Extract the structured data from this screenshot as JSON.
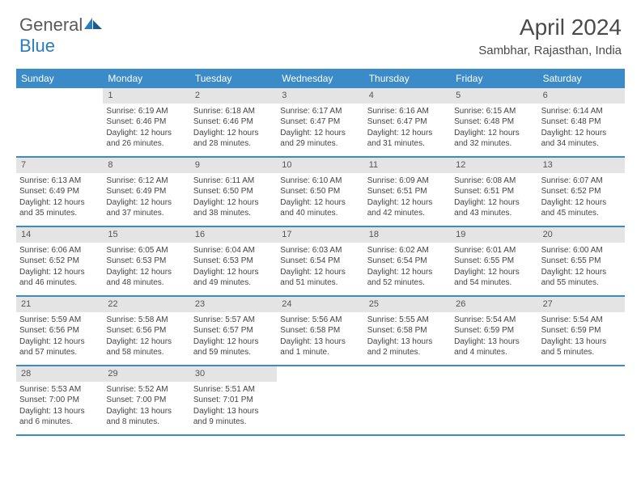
{
  "brand": {
    "word1": "General",
    "word2": "Blue"
  },
  "title": "April 2024",
  "location": "Sambhar, Rajasthan, India",
  "colors": {
    "header_bg": "#3b8bc9",
    "header_text": "#ffffff",
    "daynum_bg": "#e4e4e4",
    "border": "#3b8bc9",
    "text": "#444444",
    "logo_gray": "#5a5a5a",
    "logo_blue": "#2b7bbf"
  },
  "day_names": [
    "Sunday",
    "Monday",
    "Tuesday",
    "Wednesday",
    "Thursday",
    "Friday",
    "Saturday"
  ],
  "weeks": [
    [
      {
        "day": "",
        "sunrise": "",
        "sunset": "",
        "daylight": ""
      },
      {
        "day": "1",
        "sunrise": "Sunrise: 6:19 AM",
        "sunset": "Sunset: 6:46 PM",
        "daylight": "Daylight: 12 hours and 26 minutes."
      },
      {
        "day": "2",
        "sunrise": "Sunrise: 6:18 AM",
        "sunset": "Sunset: 6:46 PM",
        "daylight": "Daylight: 12 hours and 28 minutes."
      },
      {
        "day": "3",
        "sunrise": "Sunrise: 6:17 AM",
        "sunset": "Sunset: 6:47 PM",
        "daylight": "Daylight: 12 hours and 29 minutes."
      },
      {
        "day": "4",
        "sunrise": "Sunrise: 6:16 AM",
        "sunset": "Sunset: 6:47 PM",
        "daylight": "Daylight: 12 hours and 31 minutes."
      },
      {
        "day": "5",
        "sunrise": "Sunrise: 6:15 AM",
        "sunset": "Sunset: 6:48 PM",
        "daylight": "Daylight: 12 hours and 32 minutes."
      },
      {
        "day": "6",
        "sunrise": "Sunrise: 6:14 AM",
        "sunset": "Sunset: 6:48 PM",
        "daylight": "Daylight: 12 hours and 34 minutes."
      }
    ],
    [
      {
        "day": "7",
        "sunrise": "Sunrise: 6:13 AM",
        "sunset": "Sunset: 6:49 PM",
        "daylight": "Daylight: 12 hours and 35 minutes."
      },
      {
        "day": "8",
        "sunrise": "Sunrise: 6:12 AM",
        "sunset": "Sunset: 6:49 PM",
        "daylight": "Daylight: 12 hours and 37 minutes."
      },
      {
        "day": "9",
        "sunrise": "Sunrise: 6:11 AM",
        "sunset": "Sunset: 6:50 PM",
        "daylight": "Daylight: 12 hours and 38 minutes."
      },
      {
        "day": "10",
        "sunrise": "Sunrise: 6:10 AM",
        "sunset": "Sunset: 6:50 PM",
        "daylight": "Daylight: 12 hours and 40 minutes."
      },
      {
        "day": "11",
        "sunrise": "Sunrise: 6:09 AM",
        "sunset": "Sunset: 6:51 PM",
        "daylight": "Daylight: 12 hours and 42 minutes."
      },
      {
        "day": "12",
        "sunrise": "Sunrise: 6:08 AM",
        "sunset": "Sunset: 6:51 PM",
        "daylight": "Daylight: 12 hours and 43 minutes."
      },
      {
        "day": "13",
        "sunrise": "Sunrise: 6:07 AM",
        "sunset": "Sunset: 6:52 PM",
        "daylight": "Daylight: 12 hours and 45 minutes."
      }
    ],
    [
      {
        "day": "14",
        "sunrise": "Sunrise: 6:06 AM",
        "sunset": "Sunset: 6:52 PM",
        "daylight": "Daylight: 12 hours and 46 minutes."
      },
      {
        "day": "15",
        "sunrise": "Sunrise: 6:05 AM",
        "sunset": "Sunset: 6:53 PM",
        "daylight": "Daylight: 12 hours and 48 minutes."
      },
      {
        "day": "16",
        "sunrise": "Sunrise: 6:04 AM",
        "sunset": "Sunset: 6:53 PM",
        "daylight": "Daylight: 12 hours and 49 minutes."
      },
      {
        "day": "17",
        "sunrise": "Sunrise: 6:03 AM",
        "sunset": "Sunset: 6:54 PM",
        "daylight": "Daylight: 12 hours and 51 minutes."
      },
      {
        "day": "18",
        "sunrise": "Sunrise: 6:02 AM",
        "sunset": "Sunset: 6:54 PM",
        "daylight": "Daylight: 12 hours and 52 minutes."
      },
      {
        "day": "19",
        "sunrise": "Sunrise: 6:01 AM",
        "sunset": "Sunset: 6:55 PM",
        "daylight": "Daylight: 12 hours and 54 minutes."
      },
      {
        "day": "20",
        "sunrise": "Sunrise: 6:00 AM",
        "sunset": "Sunset: 6:55 PM",
        "daylight": "Daylight: 12 hours and 55 minutes."
      }
    ],
    [
      {
        "day": "21",
        "sunrise": "Sunrise: 5:59 AM",
        "sunset": "Sunset: 6:56 PM",
        "daylight": "Daylight: 12 hours and 57 minutes."
      },
      {
        "day": "22",
        "sunrise": "Sunrise: 5:58 AM",
        "sunset": "Sunset: 6:56 PM",
        "daylight": "Daylight: 12 hours and 58 minutes."
      },
      {
        "day": "23",
        "sunrise": "Sunrise: 5:57 AM",
        "sunset": "Sunset: 6:57 PM",
        "daylight": "Daylight: 12 hours and 59 minutes."
      },
      {
        "day": "24",
        "sunrise": "Sunrise: 5:56 AM",
        "sunset": "Sunset: 6:58 PM",
        "daylight": "Daylight: 13 hours and 1 minute."
      },
      {
        "day": "25",
        "sunrise": "Sunrise: 5:55 AM",
        "sunset": "Sunset: 6:58 PM",
        "daylight": "Daylight: 13 hours and 2 minutes."
      },
      {
        "day": "26",
        "sunrise": "Sunrise: 5:54 AM",
        "sunset": "Sunset: 6:59 PM",
        "daylight": "Daylight: 13 hours and 4 minutes."
      },
      {
        "day": "27",
        "sunrise": "Sunrise: 5:54 AM",
        "sunset": "Sunset: 6:59 PM",
        "daylight": "Daylight: 13 hours and 5 minutes."
      }
    ],
    [
      {
        "day": "28",
        "sunrise": "Sunrise: 5:53 AM",
        "sunset": "Sunset: 7:00 PM",
        "daylight": "Daylight: 13 hours and 6 minutes."
      },
      {
        "day": "29",
        "sunrise": "Sunrise: 5:52 AM",
        "sunset": "Sunset: 7:00 PM",
        "daylight": "Daylight: 13 hours and 8 minutes."
      },
      {
        "day": "30",
        "sunrise": "Sunrise: 5:51 AM",
        "sunset": "Sunset: 7:01 PM",
        "daylight": "Daylight: 13 hours and 9 minutes."
      },
      {
        "day": "",
        "sunrise": "",
        "sunset": "",
        "daylight": ""
      },
      {
        "day": "",
        "sunrise": "",
        "sunset": "",
        "daylight": ""
      },
      {
        "day": "",
        "sunrise": "",
        "sunset": "",
        "daylight": ""
      },
      {
        "day": "",
        "sunrise": "",
        "sunset": "",
        "daylight": ""
      }
    ]
  ]
}
